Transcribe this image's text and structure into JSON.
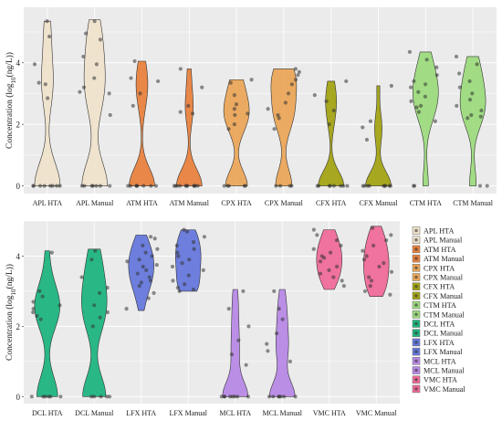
{
  "chart_data": [
    {
      "type": "violin",
      "ylabel": "Concentration (log10(ng/L))",
      "ylim": [
        -0.25,
        5.8
      ],
      "yticks": [
        0,
        2,
        4
      ],
      "categories": [
        "APL HTA",
        "APL Manual",
        "ATM HTA",
        "ATM Manual",
        "CPX HTA",
        "CPX Manual",
        "CFX HTA",
        "CFX Manual",
        "CTM HTA",
        "CTM Manual"
      ],
      "series": [
        {
          "name": "APL HTA",
          "color": "#efe3cc",
          "range": [
            0,
            5.35
          ],
          "points": [
            5.35,
            4.85,
            3.95,
            3.35,
            3.3,
            2.85,
            0,
            0,
            0,
            0,
            0,
            0,
            0,
            0
          ]
        },
        {
          "name": "APL Manual",
          "color": "#efe3cc",
          "range": [
            0,
            5.4
          ],
          "points": [
            5.35,
            4.95,
            4.75,
            4.2,
            3.95,
            3.5,
            3.2,
            3.05,
            3.0,
            2.3,
            0,
            0,
            0,
            0,
            0,
            0,
            0
          ]
        },
        {
          "name": "ATM HTA",
          "color": "#e8823f",
          "range": [
            0,
            4.05
          ],
          "points": [
            4.05,
            3.5,
            3.4,
            3.0,
            2.6,
            0,
            0,
            0,
            0,
            0,
            0,
            0,
            0
          ]
        },
        {
          "name": "ATM Manual",
          "color": "#e8823f",
          "range": [
            0,
            3.8
          ],
          "points": [
            3.8,
            3.2,
            2.6,
            2.4,
            2.35,
            0,
            0,
            0,
            0,
            0,
            0,
            0,
            0,
            0,
            0,
            0
          ]
        },
        {
          "name": "CPX HTA",
          "color": "#eba75a",
          "range": [
            0,
            3.45
          ],
          "points": [
            3.45,
            3.35,
            2.95,
            2.65,
            2.5,
            2.35,
            2.3,
            2.0,
            1.85,
            0,
            0,
            0,
            0,
            0
          ]
        },
        {
          "name": "CPX Manual",
          "color": "#eba75a",
          "range": [
            0,
            3.8
          ],
          "points": [
            3.8,
            3.7,
            3.6,
            3.45,
            3.3,
            3.0,
            2.7,
            2.5,
            2.3,
            2.2,
            1.85,
            0,
            0,
            0,
            0
          ]
        },
        {
          "name": "CFX HTA",
          "color": "#a3a315",
          "range": [
            0,
            3.4
          ],
          "points": [
            3.4,
            2.95,
            2.75,
            2.45,
            2.0,
            0,
            0,
            0,
            0,
            0,
            0,
            0,
            0
          ]
        },
        {
          "name": "CFX Manual",
          "color": "#a3a315",
          "range": [
            0,
            3.25
          ],
          "points": [
            3.25,
            2.1,
            1.9,
            1.5,
            0,
            0,
            0,
            0,
            0,
            0,
            0,
            0,
            0
          ]
        },
        {
          "name": "CTM HTA",
          "color": "#9ddb7e",
          "range": [
            0,
            4.35
          ],
          "points": [
            4.35,
            4.1,
            3.85,
            3.6,
            3.4,
            3.3,
            3.2,
            3.05,
            2.9,
            2.75,
            2.6,
            2.55,
            2.4,
            2.1,
            0,
            0
          ]
        },
        {
          "name": "CTM Manual",
          "color": "#9ddb7e",
          "range": [
            0,
            4.2
          ],
          "points": [
            4.2,
            3.95,
            3.65,
            3.4,
            3.2,
            3.0,
            2.8,
            2.6,
            2.45,
            2.3,
            2.25,
            2.2,
            0,
            0
          ]
        }
      ]
    },
    {
      "type": "violin",
      "ylabel": "Concentration (log10(ng/L))",
      "ylim": [
        -0.2,
        5.0
      ],
      "yticks": [
        0,
        2,
        4
      ],
      "categories": [
        "DCL HTA",
        "DCL Manual",
        "LFX HTA",
        "LFX Manual",
        "MCL HTA",
        "MCL Manual",
        "VMC HTA",
        "VMC Manual"
      ],
      "series": [
        {
          "name": "DCL HTA",
          "color": "#1fb57f",
          "range": [
            0,
            4.15
          ],
          "points": [
            4.1,
            3.0,
            2.85,
            2.7,
            2.6,
            2.5,
            2.4,
            2.3,
            2.2,
            0,
            0,
            0,
            0,
            0,
            0
          ]
        },
        {
          "name": "DCL Manual",
          "color": "#1fb57f",
          "range": [
            0,
            4.2
          ],
          "points": [
            4.15,
            3.9,
            3.4,
            3.1,
            2.95,
            2.6,
            2.4,
            2.25,
            2.0,
            0,
            0,
            0,
            0,
            0
          ]
        },
        {
          "name": "LFX HTA",
          "color": "#6678dc",
          "range": [
            2.45,
            4.6
          ],
          "points": [
            4.55,
            4.5,
            4.3,
            4.2,
            4.1,
            4.0,
            3.9,
            3.85,
            3.75,
            3.7,
            3.6,
            3.5,
            3.4,
            3.3,
            3.25,
            3.15,
            2.95,
            2.8,
            2.5
          ]
        },
        {
          "name": "LFX Manual",
          "color": "#6678dc",
          "range": [
            3.0,
            4.75
          ],
          "points": [
            4.75,
            4.7,
            4.55,
            4.4,
            4.3,
            4.2,
            4.1,
            4.0,
            3.9,
            3.8,
            3.7,
            3.6,
            3.45,
            3.3,
            3.2,
            3.1,
            3.05,
            3.0
          ]
        },
        {
          "name": "MCL HTA",
          "color": "#b889e6",
          "range": [
            0,
            3.05
          ],
          "points": [
            3.0,
            2.5,
            2.0,
            1.6,
            1.2,
            0.9,
            0,
            0,
            0,
            0,
            0,
            0,
            0,
            0
          ]
        },
        {
          "name": "MCL Manual",
          "color": "#b889e6",
          "range": [
            0,
            3.05
          ],
          "points": [
            3.0,
            2.5,
            2.2,
            1.8,
            1.5,
            1.3,
            1.0,
            0,
            0,
            0,
            0,
            0,
            0,
            0
          ]
        },
        {
          "name": "VMC HTA",
          "color": "#f06b9a",
          "range": [
            3.05,
            4.75
          ],
          "points": [
            4.75,
            4.6,
            4.45,
            4.3,
            4.2,
            4.1,
            4.0,
            3.95,
            3.85,
            3.7,
            3.6,
            3.5,
            3.4,
            3.3,
            3.15
          ]
        },
        {
          "name": "VMC Manual",
          "color": "#f06b9a",
          "range": [
            2.85,
            4.85
          ],
          "points": [
            4.8,
            4.6,
            4.45,
            4.3,
            4.15,
            4.0,
            3.9,
            3.8,
            3.7,
            3.55,
            3.4,
            3.3,
            3.15,
            3.0,
            2.9
          ]
        }
      ]
    }
  ],
  "legend": [
    {
      "label": "APL HTA",
      "color": "#efe3cc"
    },
    {
      "label": "APL Manual",
      "color": "#efe3cc"
    },
    {
      "label": "ATM HTA",
      "color": "#e8823f"
    },
    {
      "label": "ATM Manual",
      "color": "#e8823f"
    },
    {
      "label": "CPX HTA",
      "color": "#eba75a"
    },
    {
      "label": "CPX Manual",
      "color": "#eba75a"
    },
    {
      "label": "CFX HTA",
      "color": "#a3a315"
    },
    {
      "label": "CFX Manual",
      "color": "#a3a315"
    },
    {
      "label": "CTM HTA",
      "color": "#9ddb7e"
    },
    {
      "label": "CTM Manual",
      "color": "#9ddb7e"
    },
    {
      "label": "DCL HTA",
      "color": "#1fb57f"
    },
    {
      "label": "DCL Manual",
      "color": "#1fb57f"
    },
    {
      "label": "LFX HTA",
      "color": "#6678dc"
    },
    {
      "label": "LFX Manual",
      "color": "#6678dc"
    },
    {
      "label": "MCL HTA",
      "color": "#b889e6"
    },
    {
      "label": "MCL Manual",
      "color": "#b889e6"
    },
    {
      "label": "VMC HTA",
      "color": "#f06b9a"
    },
    {
      "label": "VMC Manual",
      "color": "#f06b9a"
    }
  ],
  "style": {
    "panel_bg": "#ebebeb",
    "grid_color": "#ffffff",
    "point_color": "#333333"
  }
}
